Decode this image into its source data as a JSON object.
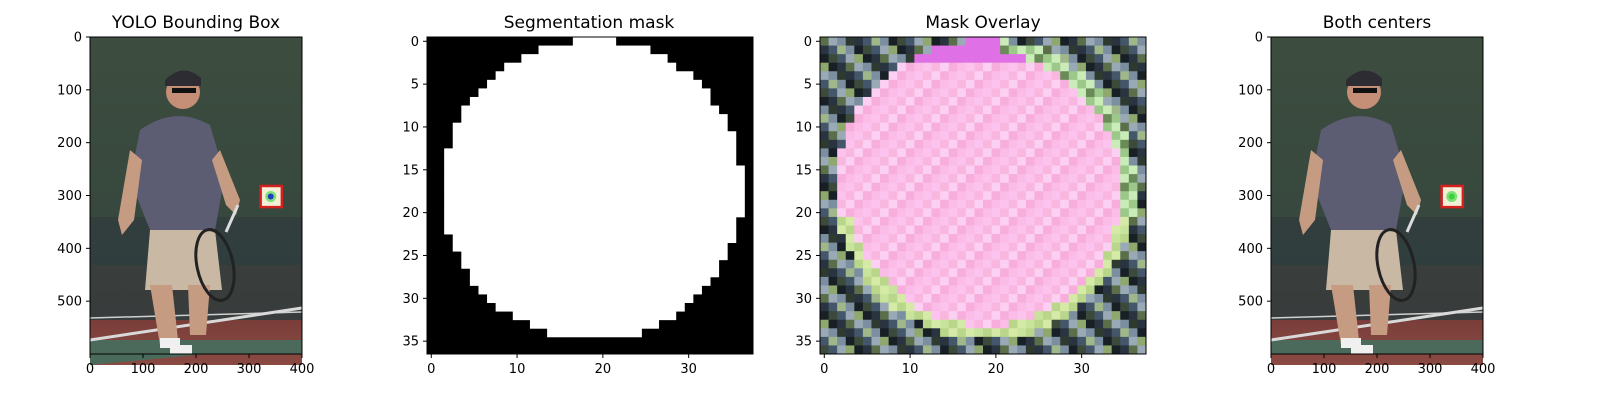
{
  "chart_data": [
    {
      "type": "image",
      "title": "YOLO Bounding Box",
      "xlim": [
        0,
        400
      ],
      "ylim": [
        600,
        0
      ],
      "xticks": [
        0,
        100,
        200,
        300,
        400
      ],
      "yticks": [
        0,
        100,
        200,
        300,
        400,
        500
      ],
      "xtick_labels": [
        "0",
        "100",
        "200",
        "300",
        "400"
      ],
      "ytick_labels": [
        "0",
        "100",
        "200",
        "300",
        "400",
        "500"
      ],
      "bbox": {
        "x": [
          322,
          362
        ],
        "y": [
          282,
          322
        ],
        "color": "#d62020"
      },
      "center": {
        "x": 341,
        "y": 302,
        "color": "#1f3fbf"
      }
    },
    {
      "type": "heatmap",
      "title": "Segmentation mask",
      "xlim": [
        -0.5,
        37.5
      ],
      "ylim": [
        36.5,
        -0.5
      ],
      "xticks": [
        0,
        10,
        20,
        30
      ],
      "yticks": [
        0,
        5,
        10,
        15,
        20,
        25,
        30,
        35
      ],
      "xtick_labels": [
        "0",
        "10",
        "20",
        "30"
      ],
      "ytick_labels": [
        "0",
        "5",
        "10",
        "15",
        "20",
        "25",
        "30",
        "35"
      ],
      "mask_circle": {
        "cx": 18.8,
        "cy": 17.3,
        "r": 17.5
      },
      "colors": {
        "on": "#ffffff",
        "off": "#000000"
      }
    },
    {
      "type": "heatmap",
      "title": "Mask Overlay",
      "xlim": [
        -0.5,
        37.5
      ],
      "ylim": [
        36.5,
        -0.5
      ],
      "xticks": [
        0,
        10,
        20,
        30
      ],
      "yticks": [
        0,
        5,
        10,
        15,
        20,
        25,
        30,
        35
      ],
      "xtick_labels": [
        "0",
        "10",
        "20",
        "30"
      ],
      "ytick_labels": [
        "0",
        "5",
        "10",
        "15",
        "20",
        "25",
        "30",
        "35"
      ],
      "overlay_color": "#f7a8e8"
    },
    {
      "type": "image",
      "title": "Both centers",
      "xlim": [
        0,
        400
      ],
      "ylim": [
        600,
        0
      ],
      "xticks": [
        0,
        100,
        200,
        300,
        400
      ],
      "yticks": [
        0,
        100,
        200,
        300,
        400,
        500
      ],
      "xtick_labels": [
        "0",
        "100",
        "200",
        "300",
        "400"
      ],
      "ytick_labels": [
        "0",
        "100",
        "200",
        "300",
        "400",
        "500"
      ],
      "bbox": {
        "x": [
          322,
          362
        ],
        "y": [
          282,
          322
        ],
        "color": "#d62020"
      },
      "center": {
        "x": 341,
        "y": 302,
        "color": "#3ad23a"
      }
    }
  ]
}
